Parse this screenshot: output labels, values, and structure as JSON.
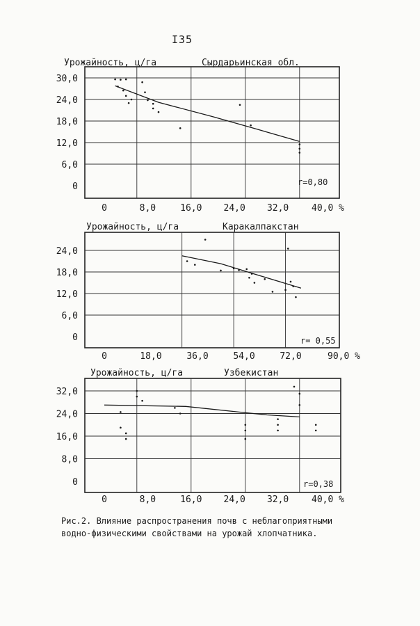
{
  "page_number": "I35",
  "caption": {
    "line1": "Рис.2. Влияние распространения почв с неблагоприятными",
    "line2": "водно-физическими свойствами на урожай хлопчатника."
  },
  "chart_data": [
    {
      "type": "scatter",
      "ylabel": "Урожайность, ц/га",
      "region": "Сырдарьинская обл.",
      "r_label": "r=0,80",
      "xlim": [
        0,
        42
      ],
      "ylim": [
        0,
        31
      ],
      "x_ticks": [
        "0",
        "8,0",
        "16,0",
        "24,0",
        "32,0",
        "40,0 %"
      ],
      "x_tick_values": [
        0,
        8,
        16,
        24,
        32,
        40
      ],
      "y_ticks": [
        "30,0",
        "24,0",
        "18,0",
        "12,0",
        "6,0",
        "0"
      ],
      "y_tick_values": [
        30,
        24,
        18,
        12,
        6,
        0
      ],
      "x_grid": [
        6,
        16,
        26,
        36
      ],
      "y_grid": [
        30,
        24,
        18,
        12,
        6
      ],
      "trend": [
        [
          2,
          27.8
        ],
        [
          10,
          23.2
        ],
        [
          20,
          19.2
        ],
        [
          28,
          15.8
        ],
        [
          36,
          12.3
        ]
      ],
      "points": [
        [
          2,
          29.6
        ],
        [
          3,
          29.5
        ],
        [
          4,
          29.6
        ],
        [
          2.5,
          27.6
        ],
        [
          3.5,
          26.5
        ],
        [
          4,
          25
        ],
        [
          5,
          24
        ],
        [
          4.5,
          23
        ],
        [
          7,
          28.8
        ],
        [
          7.5,
          26
        ],
        [
          8,
          23.8
        ],
        [
          9,
          22.8
        ],
        [
          9,
          21.5
        ],
        [
          10,
          20.5
        ],
        [
          14,
          16
        ],
        [
          25,
          22.5
        ],
        [
          27,
          16.8
        ],
        [
          36,
          11.5
        ],
        [
          36,
          10.3
        ],
        [
          36,
          9.2
        ]
      ]
    },
    {
      "type": "scatter",
      "ylabel": "Урожайность, ц/га",
      "region": "Каракалпакстан",
      "r_label": "r= 0,55",
      "xlim": [
        0,
        100
      ],
      "ylim": [
        0,
        28
      ],
      "x_ticks": [
        "0",
        "18,0",
        "36,0",
        "54,0",
        "72,0",
        "90,0 %"
      ],
      "x_tick_values": [
        0,
        18,
        36,
        54,
        72,
        90
      ],
      "y_ticks": [
        "24,0",
        "18,0",
        "12,0",
        "6,0",
        "0"
      ],
      "y_tick_values": [
        24,
        18,
        12,
        6,
        0
      ],
      "x_grid": [
        30,
        50,
        70
      ],
      "y_grid": [
        24,
        18,
        12,
        6
      ],
      "trend": [
        [
          30,
          22.5
        ],
        [
          45,
          20.3
        ],
        [
          60,
          17
        ],
        [
          76,
          13.5
        ]
      ],
      "points": [
        [
          39,
          27
        ],
        [
          32,
          21
        ],
        [
          35,
          20
        ],
        [
          45,
          18.4
        ],
        [
          50,
          19
        ],
        [
          52,
          18.5
        ],
        [
          55,
          18.8
        ],
        [
          57,
          17.5
        ],
        [
          56,
          16.4
        ],
        [
          58,
          15
        ],
        [
          62,
          16
        ],
        [
          65,
          12.5
        ],
        [
          71,
          24.5
        ],
        [
          72,
          15.3
        ],
        [
          73,
          14
        ],
        [
          74,
          11
        ],
        [
          70,
          13
        ]
      ]
    },
    {
      "type": "scatter",
      "ylabel": "Урожайность, ц/га",
      "region": "Узбекистан",
      "r_label": "r=0,38",
      "xlim": [
        0,
        42
      ],
      "ylim": [
        0,
        36
      ],
      "x_ticks": [
        "0",
        "8,0",
        "16,0",
        "24,0",
        "32,0",
        "40,0 %"
      ],
      "x_tick_values": [
        0,
        8,
        16,
        24,
        32,
        40
      ],
      "y_ticks": [
        "32,0",
        "24,0",
        "16,0",
        "8,0",
        "0"
      ],
      "y_tick_values": [
        32,
        24,
        16,
        8,
        0
      ],
      "x_grid": [
        6,
        16,
        26,
        36
      ],
      "y_grid": [
        32,
        24,
        16,
        8
      ],
      "trend": [
        [
          0,
          27
        ],
        [
          15,
          26.5
        ],
        [
          25,
          24.5
        ],
        [
          30,
          23.5
        ],
        [
          36,
          22.8
        ]
      ],
      "points": [
        [
          3,
          24.5
        ],
        [
          3,
          19
        ],
        [
          4,
          17
        ],
        [
          4,
          15
        ],
        [
          6,
          32
        ],
        [
          6,
          30
        ],
        [
          7,
          28.5
        ],
        [
          13,
          26
        ],
        [
          14,
          24
        ],
        [
          26,
          20
        ],
        [
          26,
          18
        ],
        [
          26,
          15
        ],
        [
          32,
          22
        ],
        [
          32,
          20
        ],
        [
          32,
          18
        ],
        [
          35,
          33.5
        ],
        [
          36,
          31
        ],
        [
          36,
          27
        ],
        [
          39,
          20
        ],
        [
          39,
          18
        ]
      ]
    }
  ]
}
